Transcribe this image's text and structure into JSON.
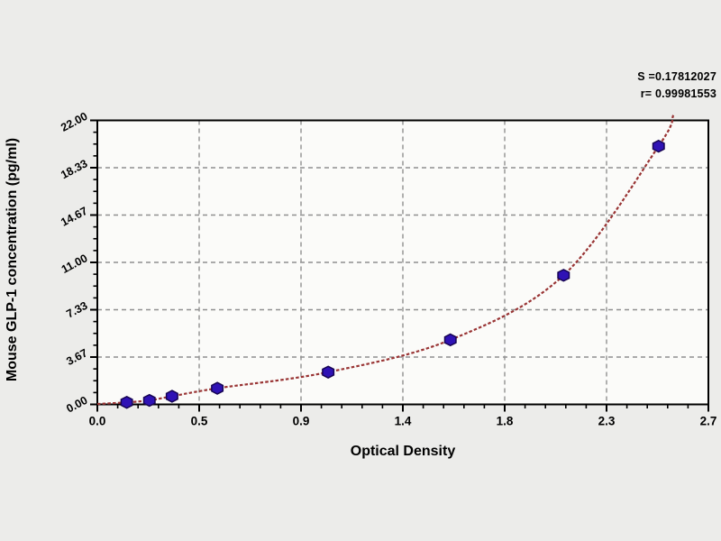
{
  "chart_data": {
    "type": "scatter",
    "title": "",
    "xlabel": "Optical Density",
    "ylabel": "Mouse GLP-1 concentration (pg/ml)",
    "xlim": [
      0,
      2.7
    ],
    "ylim": [
      0,
      22
    ],
    "grid": true,
    "legend": "none",
    "annotations": [
      "S =0.17812027",
      "r= 0.99981553"
    ],
    "x_ticks": [
      {
        "value": 0.0,
        "label": "0.0"
      },
      {
        "value": 0.45,
        "label": "0.5"
      },
      {
        "value": 0.9,
        "label": "0.9"
      },
      {
        "value": 1.35,
        "label": "1.4"
      },
      {
        "value": 1.8,
        "label": "1.8"
      },
      {
        "value": 2.25,
        "label": "2.3"
      },
      {
        "value": 2.7,
        "label": "2.7"
      }
    ],
    "y_ticks": [
      {
        "value": 0.0,
        "label": "0.00"
      },
      {
        "value": 3.6667,
        "label": "3.67"
      },
      {
        "value": 7.3333,
        "label": "7.33"
      },
      {
        "value": 11.0,
        "label": "11.00"
      },
      {
        "value": 14.6667,
        "label": "14.67"
      },
      {
        "value": 18.3333,
        "label": "18.33"
      },
      {
        "value": 22.0,
        "label": "22.00"
      }
    ],
    "x_minor_per_major": 4,
    "y_minor_per_major": 3,
    "points": [
      {
        "x": 0.13,
        "y": 0.16
      },
      {
        "x": 0.23,
        "y": 0.31
      },
      {
        "x": 0.33,
        "y": 0.63
      },
      {
        "x": 0.53,
        "y": 1.25
      },
      {
        "x": 1.02,
        "y": 2.5
      },
      {
        "x": 1.56,
        "y": 5.0
      },
      {
        "x": 2.06,
        "y": 10.0
      },
      {
        "x": 2.48,
        "y": 20.0
      }
    ],
    "curve": {
      "name": "fitted standard curve",
      "points": [
        {
          "x": 0.0,
          "y": 0.03
        },
        {
          "x": 0.13,
          "y": 0.16
        },
        {
          "x": 0.23,
          "y": 0.31
        },
        {
          "x": 0.33,
          "y": 0.63
        },
        {
          "x": 0.53,
          "y": 1.25
        },
        {
          "x": 1.02,
          "y": 2.5
        },
        {
          "x": 1.56,
          "y": 5.0
        },
        {
          "x": 2.06,
          "y": 10.0
        },
        {
          "x": 2.48,
          "y": 20.0
        },
        {
          "x": 2.545,
          "y": 22.4
        }
      ]
    },
    "colors": {
      "curve": "#993434",
      "marker": "#2f12b5",
      "marker_outline": "#170553",
      "grid": "#909090",
      "frame": "#000000",
      "tick": "#000000",
      "plot_bg": "#fbfbf9",
      "page_bg": "#ececea",
      "text": "#000000"
    }
  }
}
